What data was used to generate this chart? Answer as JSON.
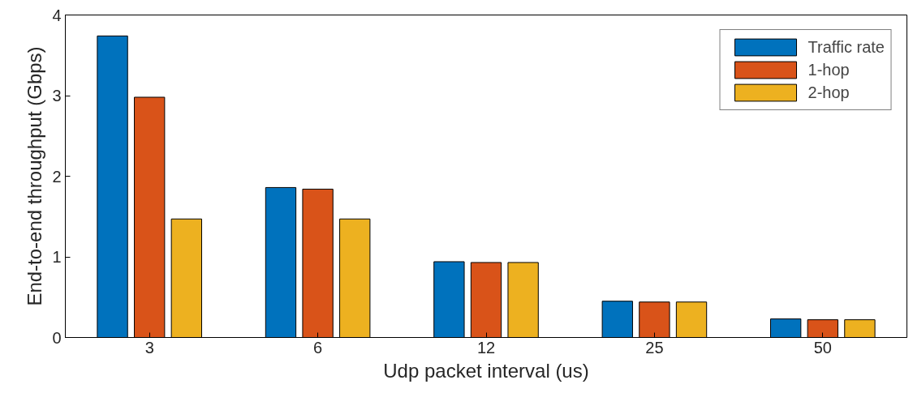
{
  "chart_data": {
    "type": "bar",
    "xlabel": "Udp packet interval (us)",
    "ylabel": "End-to-end throughput (Gbps)",
    "categories": [
      "3",
      "6",
      "12",
      "25",
      "50"
    ],
    "series": [
      {
        "name": "Traffic rate",
        "color": "#0072bd",
        "values": [
          3.74,
          1.86,
          0.94,
          0.45,
          0.23
        ]
      },
      {
        "name": "1-hop",
        "color": "#d95319",
        "values": [
          2.98,
          1.84,
          0.93,
          0.44,
          0.22
        ]
      },
      {
        "name": "2-hop",
        "color": "#edb120",
        "values": [
          1.47,
          1.47,
          0.93,
          0.44,
          0.22
        ]
      }
    ],
    "ylim": [
      0,
      4
    ],
    "yticks": [
      0,
      1,
      2,
      3,
      4
    ],
    "grid": false,
    "legend": "top right"
  }
}
